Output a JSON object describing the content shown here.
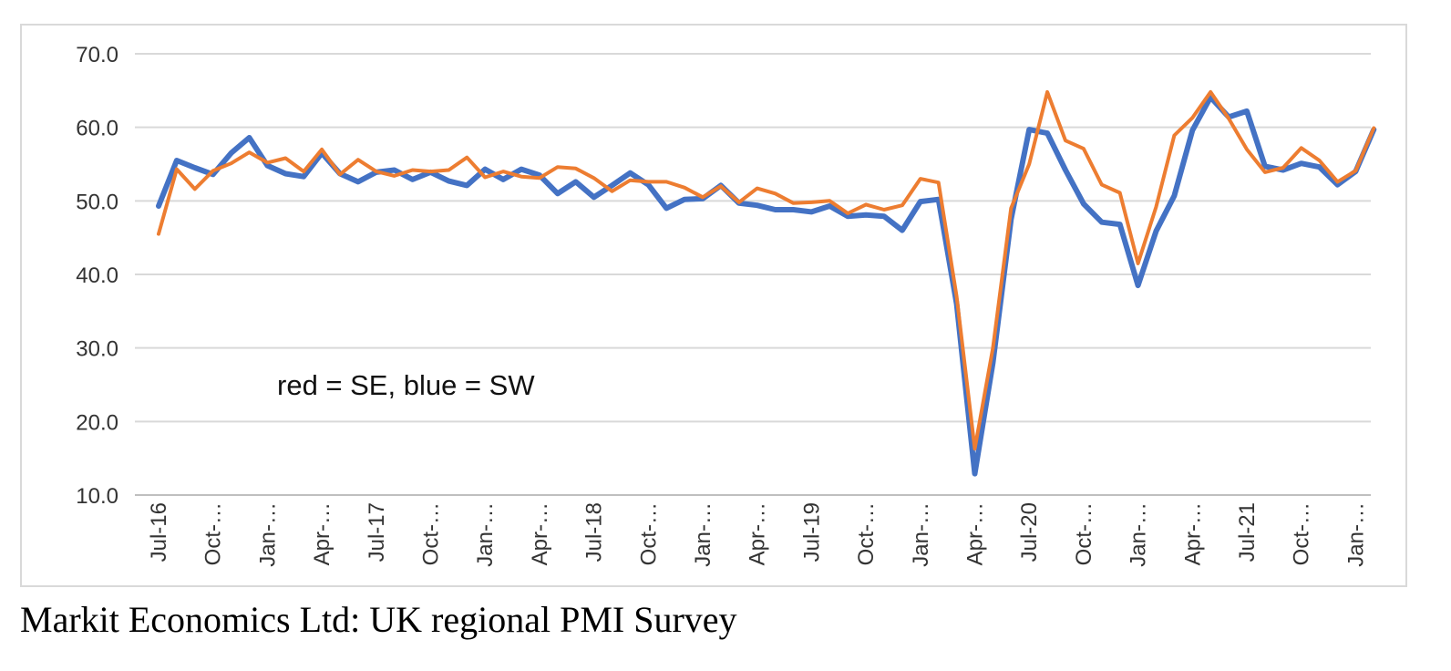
{
  "caption": "Markit Economics Ltd: UK regional PMI Survey",
  "chart_data": {
    "type": "line",
    "title": "",
    "xlabel": "",
    "ylabel": "",
    "ylim": [
      10,
      70
    ],
    "y_ticks": [
      "10.0",
      "20.0",
      "30.0",
      "40.0",
      "50.0",
      "60.0",
      "70.0"
    ],
    "grid": true,
    "annotation": "red = SE, blue = SW",
    "x_tick_labels": [
      "Jul-16",
      "Oct-…",
      "Jan-…",
      "Apr-…",
      "Jul-17",
      "Oct-…",
      "Jan-…",
      "Apr-…",
      "Jul-18",
      "Oct-…",
      "Jan-…",
      "Apr-…",
      "Jul-19",
      "Oct-…",
      "Jan-…",
      "Apr-…",
      "Jul-20",
      "Oct-…",
      "Jan-…",
      "Apr-…",
      "Jul-21",
      "Oct-…",
      "Jan-…"
    ],
    "x": [
      "Jul-16",
      "Aug-16",
      "Sep-16",
      "Oct-16",
      "Nov-16",
      "Dec-16",
      "Jan-17",
      "Feb-17",
      "Mar-17",
      "Apr-17",
      "May-17",
      "Jun-17",
      "Jul-17",
      "Aug-17",
      "Sep-17",
      "Oct-17",
      "Nov-17",
      "Dec-17",
      "Jan-18",
      "Feb-18",
      "Mar-18",
      "Apr-18",
      "May-18",
      "Jun-18",
      "Jul-18",
      "Aug-18",
      "Sep-18",
      "Oct-18",
      "Nov-18",
      "Dec-18",
      "Jan-19",
      "Feb-19",
      "Mar-19",
      "Apr-19",
      "May-19",
      "Jun-19",
      "Jul-19",
      "Aug-19",
      "Sep-19",
      "Oct-19",
      "Nov-19",
      "Dec-19",
      "Jan-20",
      "Feb-20",
      "Mar-20",
      "Apr-20",
      "May-20",
      "Jun-20",
      "Jul-20",
      "Aug-20",
      "Sep-20",
      "Oct-20",
      "Nov-20",
      "Dec-20",
      "Jan-21",
      "Feb-21",
      "Mar-21",
      "Apr-21",
      "May-21",
      "Jun-21",
      "Jul-21",
      "Aug-21",
      "Sep-21",
      "Oct-21",
      "Nov-21",
      "Dec-21",
      "Jan-22",
      "Feb-22"
    ],
    "series": [
      {
        "key": "sw",
        "color": "#4472c4",
        "width": 6,
        "values": [
          49.3,
          55.5,
          54.5,
          53.6,
          56.5,
          58.6,
          54.8,
          53.7,
          53.3,
          56.5,
          53.7,
          52.6,
          53.9,
          54.2,
          52.9,
          53.9,
          52.7,
          52.1,
          54.3,
          52.9,
          54.3,
          53.5,
          51.0,
          52.6,
          50.5,
          52.1,
          53.8,
          52.2,
          49.0,
          50.2,
          50.3,
          52.1,
          49.7,
          49.4,
          48.8,
          48.8,
          48.5,
          49.3,
          47.9,
          48.1,
          47.9,
          46.0,
          49.9,
          50.2,
          36.0,
          12.9,
          28.0,
          47.5,
          59.7,
          59.2,
          54.2,
          49.6,
          47.1,
          46.8,
          38.5,
          45.9,
          50.7,
          59.6,
          64.1,
          61.4,
          62.2,
          54.7,
          54.2,
          55.1,
          54.6,
          52.2,
          54.0,
          59.7
        ]
      },
      {
        "key": "se",
        "color": "#ed7d31",
        "width": 4,
        "values": [
          45.5,
          54.3,
          51.6,
          54.1,
          55.1,
          56.6,
          55.2,
          55.8,
          54.0,
          57.0,
          53.6,
          55.6,
          54.0,
          53.4,
          54.2,
          54.0,
          54.2,
          55.9,
          53.2,
          54.0,
          53.3,
          53.1,
          54.6,
          54.4,
          53.1,
          51.3,
          52.8,
          52.6,
          52.6,
          51.8,
          50.5,
          52.0,
          49.8,
          51.7,
          51.0,
          49.7,
          49.8,
          50.0,
          48.3,
          49.5,
          48.8,
          49.4,
          53.0,
          52.5,
          37.0,
          16.3,
          30.0,
          49.0,
          55.0,
          64.8,
          58.2,
          57.1,
          52.2,
          51.1,
          41.5,
          49.2,
          58.9,
          61.3,
          64.8,
          61.2,
          57.0,
          53.9,
          54.5,
          57.2,
          55.5,
          52.6,
          54.1,
          59.9
        ]
      }
    ]
  }
}
